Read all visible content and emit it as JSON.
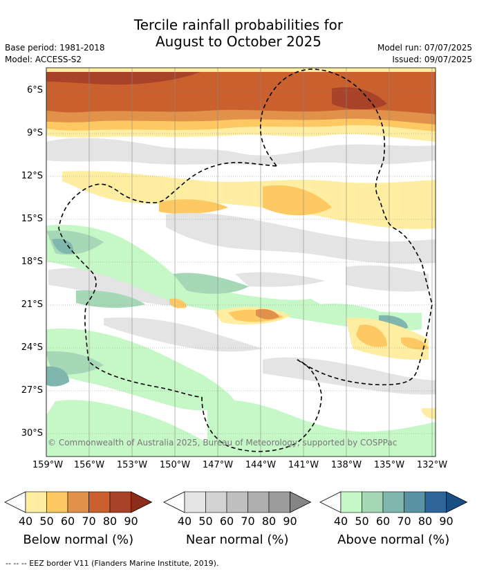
{
  "title_line1": "Tercile rainfall probabilities for",
  "title_line2": "August to October 2025",
  "base_period": "Base period: 1981-2018",
  "model": "Model: ACCESS-S2",
  "model_run": "Model run: 07/07/2025",
  "issued": "Issued: 09/07/2025",
  "copyright": "© Commonwealth of Australia 2025, Bureau of Meteorology, supported by COSPPac",
  "footnote": "-- -- -- EEZ border V11 (Flanders Marine Institute, 2019).",
  "lat_labels": [
    "6°S",
    "9°S",
    "12°S",
    "15°S",
    "18°S",
    "21°S",
    "24°S",
    "27°S",
    "30°S"
  ],
  "lon_labels": [
    "159°W",
    "156°W",
    "153°W",
    "150°W",
    "147°W",
    "144°W",
    "141°W",
    "138°W",
    "135°W",
    "132°W"
  ],
  "colorbars": [
    {
      "title": "Below normal (%)",
      "ticks": [
        "40",
        "50",
        "60",
        "70",
        "80",
        "90"
      ],
      "colors": [
        "#ffeea1",
        "#fec862",
        "#e2914a",
        "#c9602e",
        "#a8432a",
        "#8c2d1c"
      ]
    },
    {
      "title": "Near normal (%)",
      "ticks": [
        "40",
        "50",
        "60",
        "70",
        "80",
        "90"
      ],
      "colors": [
        "#e4e4e4",
        "#d3d3d3",
        "#c0c0c0",
        "#afafaf",
        "#9c9c9c",
        "#858585"
      ]
    },
    {
      "title": "Above normal (%)",
      "ticks": [
        "40",
        "50",
        "60",
        "70",
        "80",
        "90"
      ],
      "colors": [
        "#c6f7c6",
        "#a6d8b8",
        "#7fb7ae",
        "#5a94a4",
        "#2f6699",
        "#1a4d84"
      ]
    }
  ],
  "colors": {
    "white": "#ffffff",
    "border": "#000000",
    "grid": "#888888"
  }
}
